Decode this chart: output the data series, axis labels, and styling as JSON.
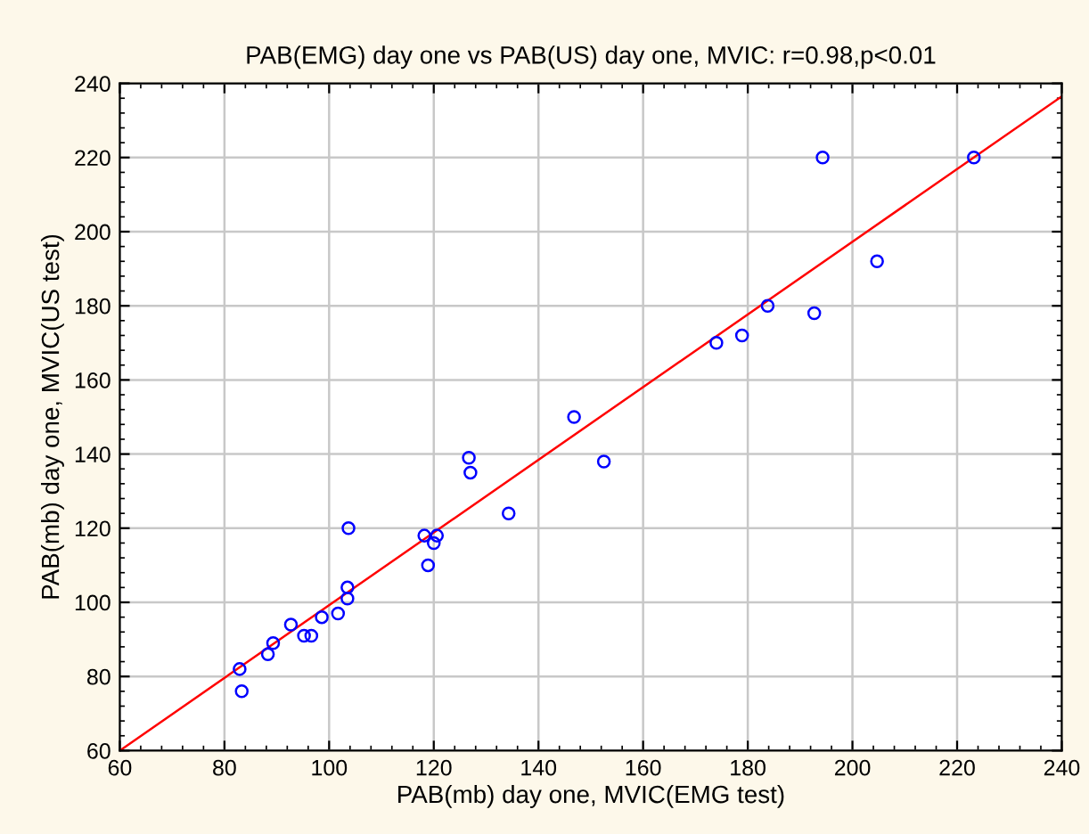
{
  "chart_data": {
    "type": "scatter",
    "title": "PAB(EMG) day one vs PAB(US) day one, MVIC: r=0.98,p<0.01",
    "xlabel": "PAB(mb) day one, MVIC(EMG test)",
    "ylabel": "PAB(mb) day one, MVIC(US test)",
    "xlim": [
      60,
      240
    ],
    "ylim": [
      60,
      240
    ],
    "xticks": [
      60,
      80,
      100,
      120,
      140,
      160,
      180,
      200,
      220,
      240
    ],
    "yticks": [
      60,
      80,
      100,
      120,
      140,
      160,
      180,
      200,
      220,
      240
    ],
    "grid": true,
    "marker": "circle",
    "series": [
      {
        "color": "#0000ff",
        "x": [
          82.9,
          83.3,
          88.3,
          89.3,
          92.7,
          95.2,
          96.6,
          98.6,
          101.7,
          103.5,
          103.5,
          103.7,
          118.2,
          118.9,
          120,
          120.6,
          126.7,
          127,
          134.3,
          146.8,
          152.5,
          174,
          178.9,
          183.8,
          192.7,
          194.3,
          204.7,
          223.2
        ],
        "values": [
          82,
          76,
          86,
          89,
          94,
          91,
          91,
          96,
          97,
          101,
          104,
          120,
          118,
          110,
          116,
          118,
          139,
          135,
          124,
          150,
          138,
          170,
          172,
          180,
          178,
          220,
          192,
          220
        ]
      },
      {
        "type": "line",
        "color": "#ff0000",
        "marker": "none",
        "x": [
          60,
          240
        ],
        "values": [
          60,
          236.5
        ]
      }
    ]
  }
}
